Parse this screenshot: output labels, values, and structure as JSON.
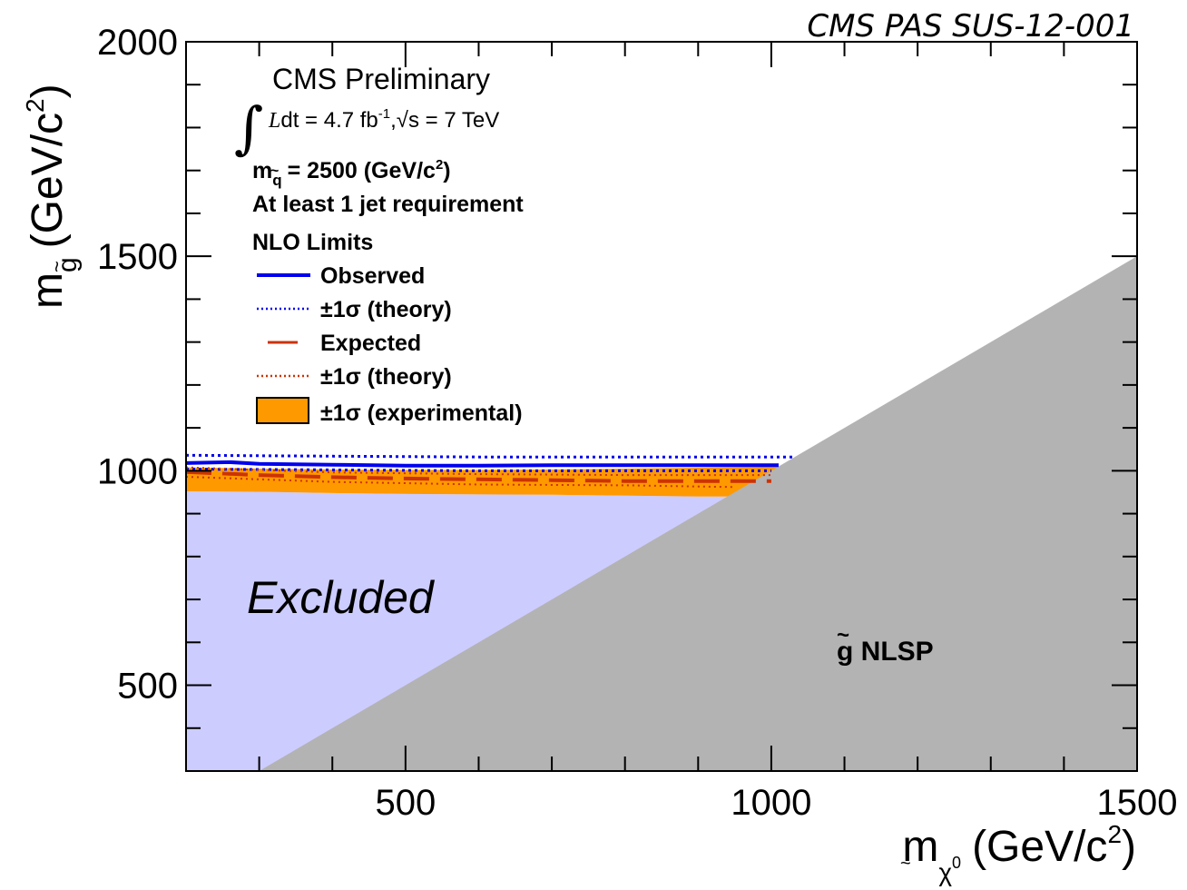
{
  "publication_tag": "CMS PAS SUS-12-001",
  "colors": {
    "observed": "#0000ee",
    "expected": "#cc3300",
    "experimental_band": "#ff9900",
    "excluded_region": "#ccccff",
    "nlsp_region": "#b3b3b3"
  },
  "chart_data": {
    "type": "area",
    "x_axis": {
      "label_symbol": "m",
      "label_subscript": "χ",
      "label_subscript_sup": "0",
      "label_unit": "(GeV/c",
      "label_unit_sup": "2",
      "label_unit_close": ")",
      "range": [
        200,
        1500
      ],
      "ticks": [
        "500",
        "1000",
        "1500"
      ],
      "tick_values": [
        500,
        1000,
        1500
      ],
      "minor_step": 100
    },
    "y_axis": {
      "label_symbol": "m",
      "label_subscript": "g",
      "label_unit": "(GeV/c",
      "label_unit_sup": "2",
      "label_unit_close": ")",
      "range": [
        300,
        2000
      ],
      "ticks": [
        "500",
        "1000",
        "1500",
        "2000"
      ],
      "tick_values": [
        500,
        1000,
        1500,
        2000
      ],
      "minor_step": 100
    },
    "header": {
      "experiment": "CMS Preliminary",
      "lumi_prefix": "L",
      "lumi_mid": "dt = 4.7 fb",
      "lumi_exp": "-1",
      "lumi_suffix": ",√s = 7 TeV",
      "squark_mass_prefix": "m",
      "squark_mass_sub": "q",
      "squark_mass_value": "= 2500 (GeV/c",
      "squark_mass_sup": "2",
      "squark_mass_close": ")",
      "requirement": "At least 1 jet requirement",
      "limits_title": "NLO Limits"
    },
    "legend": [
      {
        "label": "Observed",
        "style": "solid",
        "color": "#0000ee"
      },
      {
        "label": "±1σ (theory)",
        "style": "dotted",
        "color": "#0000ee"
      },
      {
        "label": "Expected",
        "style": "dashed",
        "color": "#cc3300"
      },
      {
        "label": "±1σ (theory)",
        "style": "dotted",
        "color": "#cc3300"
      },
      {
        "label": "±1σ (experimental)",
        "style": "box",
        "color": "#ff9900"
      }
    ],
    "regions": {
      "excluded_label": "Excluded",
      "nlsp_label": "g NLSP",
      "kinematic_boundary": [
        [
          300,
          300
        ],
        [
          1500,
          1500
        ]
      ]
    },
    "series": [
      {
        "name": "Observed",
        "x": [
          200,
          260,
          300,
          400,
          500,
          600,
          700,
          800,
          900,
          1010
        ],
        "y": [
          1018,
          1020,
          1016,
          1014,
          1012,
          1012,
          1013,
          1013,
          1013,
          1013
        ]
      },
      {
        "name": "Observed +1σ (theory)",
        "x": [
          200,
          400,
          600,
          800,
          1030
        ],
        "y": [
          1036,
          1034,
          1032,
          1032,
          1032
        ]
      },
      {
        "name": "Observed −1σ (theory)",
        "x": [
          200,
          400,
          600,
          800,
          1000
        ],
        "y": [
          1004,
          1002,
          1000,
          1000,
          1000
        ]
      },
      {
        "name": "Expected",
        "x": [
          200,
          300,
          400,
          500,
          600,
          700,
          800,
          900,
          1000
        ],
        "y": [
          997,
          990,
          985,
          982,
          980,
          978,
          976,
          976,
          976
        ]
      },
      {
        "name": "Expected +1σ (theory)",
        "x": [
          200,
          400,
          600,
          800,
          1000
        ],
        "y": [
          1008,
          996,
          992,
          990,
          990
        ]
      },
      {
        "name": "Expected −1σ (theory)",
        "x": [
          200,
          400,
          600,
          800,
          950
        ],
        "y": [
          986,
          974,
          968,
          966,
          962
        ]
      },
      {
        "name": "Expected +1σ (experimental)",
        "x": [
          200,
          300,
          400,
          500,
          600,
          700,
          800,
          900,
          1020
        ],
        "y": [
          1008,
          1005,
          1003,
          1002,
          1002,
          1003,
          1005,
          1007,
          1010
        ]
      },
      {
        "name": "Expected −1σ (experimental)",
        "x": [
          200,
          300,
          400,
          500,
          600,
          700,
          800,
          900,
          950
        ],
        "y": [
          952,
          951,
          948,
          946,
          945,
          944,
          942,
          940,
          940
        ]
      }
    ]
  }
}
